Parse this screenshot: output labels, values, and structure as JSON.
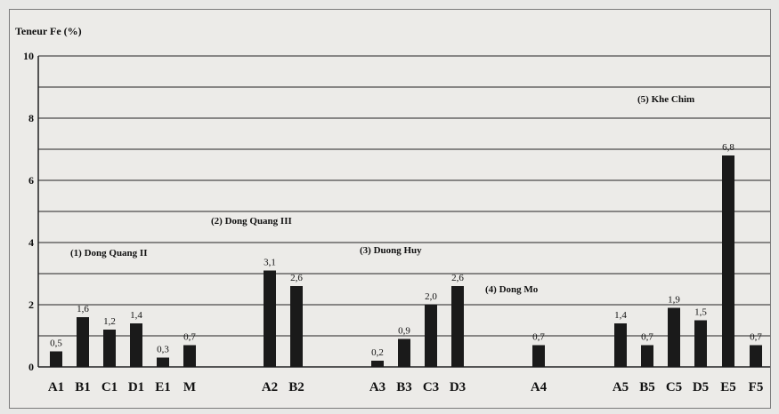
{
  "chart_data": {
    "type": "bar",
    "ylabel": "Teneur Fe (%)",
    "ylim": [
      0,
      10
    ],
    "yticks": [
      "0",
      "2",
      "4",
      "6",
      "8",
      "10"
    ],
    "grid": true,
    "categories": [
      "A1",
      "B1",
      "C1",
      "D1",
      "E1",
      "M",
      "A2",
      "B2",
      "A3",
      "B3",
      "C3",
      "D3",
      "A4",
      "A5",
      "B5",
      "C5",
      "D5",
      "E5",
      "F5"
    ],
    "values": [
      0.5,
      1.6,
      1.2,
      1.4,
      0.3,
      0.7,
      3.1,
      2.6,
      0.2,
      0.9,
      2.0,
      2.6,
      0.7,
      1.4,
      0.7,
      1.9,
      1.5,
      6.8,
      0.7
    ],
    "value_labels": [
      "0,5",
      "1,6",
      "1,2",
      "1,4",
      "0,3",
      "0,7",
      "3,1",
      "2,6",
      "0,2",
      "0,9",
      "2,0",
      "2,6",
      "0,7",
      "1,4",
      "0,7",
      "1,9",
      "1,5",
      "6,8",
      "0,7"
    ],
    "groups": [
      {
        "label": "(1) Dong Quang II",
        "categories": [
          "A1",
          "B1",
          "C1",
          "D1",
          "E1",
          "M"
        ]
      },
      {
        "label": "(2) Dong Quang III",
        "categories": [
          "A2",
          "B2"
        ]
      },
      {
        "label": "(3) Duong Huy",
        "categories": [
          "A3",
          "B3",
          "C3",
          "D3"
        ]
      },
      {
        "label": "(4) Dong Mo",
        "categories": [
          "A4"
        ]
      },
      {
        "label": "(5) Khe Chim",
        "categories": [
          "A5",
          "B5",
          "C5",
          "D5",
          "E5",
          "F5"
        ]
      }
    ],
    "bar_color": "#1a1a1a",
    "grid_color": "#222222"
  }
}
